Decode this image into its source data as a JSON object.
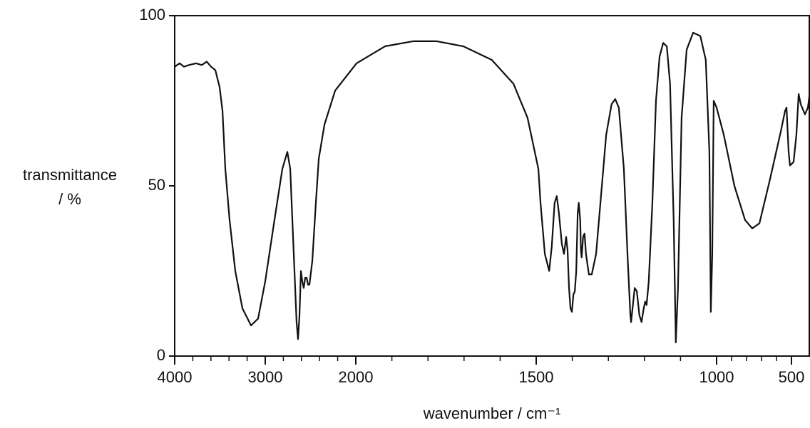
{
  "chart_data": {
    "type": "line",
    "y_label": [
      "transmittance",
      "/ %"
    ],
    "x_label": "wavenumber / cm⁻¹",
    "xlim": [
      4000,
      376
    ],
    "xticks": [
      4000,
      3000,
      2000,
      1500,
      1000,
      500
    ],
    "ylim": [
      0,
      100
    ],
    "yticks": [
      0,
      50,
      100
    ],
    "series": [
      {
        "color": "#111111",
        "x": [
          4000,
          3945,
          3898,
          3843,
          3764,
          3701,
          3646,
          3598,
          3551,
          3504,
          3472,
          3441,
          3394,
          3331,
          3252,
          3157,
          3079,
          3000,
          2898,
          2811,
          2756,
          2724,
          2685,
          2654,
          2638,
          2622,
          2606,
          2591,
          2575,
          2559,
          2543,
          2528,
          2512,
          2480,
          2441,
          2409,
          2346,
          2228,
          1998,
          1919,
          1840,
          1777,
          1702,
          1623,
          1563,
          1524,
          1504,
          1494,
          1488,
          1476,
          1464,
          1457,
          1449,
          1443,
          1437,
          1429,
          1423,
          1417,
          1413,
          1409,
          1405,
          1401,
          1397,
          1393,
          1389,
          1385,
          1382,
          1378,
          1376,
          1374,
          1370,
          1366,
          1362,
          1354,
          1346,
          1334,
          1322,
          1306,
          1291,
          1281,
          1271,
          1257,
          1247,
          1239,
          1237,
          1233,
          1227,
          1221,
          1214,
          1208,
          1202,
          1198,
          1194,
          1188,
          1178,
          1168,
          1158,
          1148,
          1138,
          1129,
          1119,
          1113,
          1107,
          1097,
          1083,
          1065,
          1045,
          1030,
          1020,
          1016,
          1012,
          1008,
          1000,
          952,
          881,
          810,
          762,
          714,
          643,
          571,
          543,
          533,
          519,
          510,
          486,
          467,
          452,
          438,
          410,
          390,
          376
        ],
        "values": [
          85,
          86,
          85,
          85.5,
          86,
          85.5,
          86.5,
          85,
          84,
          79,
          72,
          55,
          40,
          25,
          14,
          9,
          11,
          22,
          40,
          55,
          60,
          55,
          30,
          10,
          5,
          12,
          25,
          22,
          20,
          23,
          23,
          21,
          21,
          28,
          45,
          58,
          68,
          78,
          86,
          91,
          92.5,
          92.5,
          91,
          87,
          80,
          70,
          60,
          55,
          45,
          30,
          25,
          32,
          45,
          47,
          42,
          33,
          30,
          35,
          31,
          20,
          14,
          13,
          18,
          19,
          25,
          42,
          45,
          40,
          31,
          29,
          35,
          36,
          30,
          24,
          24,
          30,
          45,
          65,
          74,
          75.5,
          73,
          55,
          30,
          12,
          10,
          14,
          20,
          19,
          12,
          10,
          14,
          16,
          15,
          22,
          45,
          75,
          88,
          92,
          91,
          80,
          40,
          4,
          20,
          70,
          90,
          95,
          94,
          87,
          60,
          13,
          30,
          75,
          73,
          65,
          50,
          40,
          37.5,
          39,
          52,
          66,
          72,
          73,
          60,
          56,
          57,
          65,
          77,
          74,
          71,
          73,
          78
        ]
      }
    ]
  }
}
